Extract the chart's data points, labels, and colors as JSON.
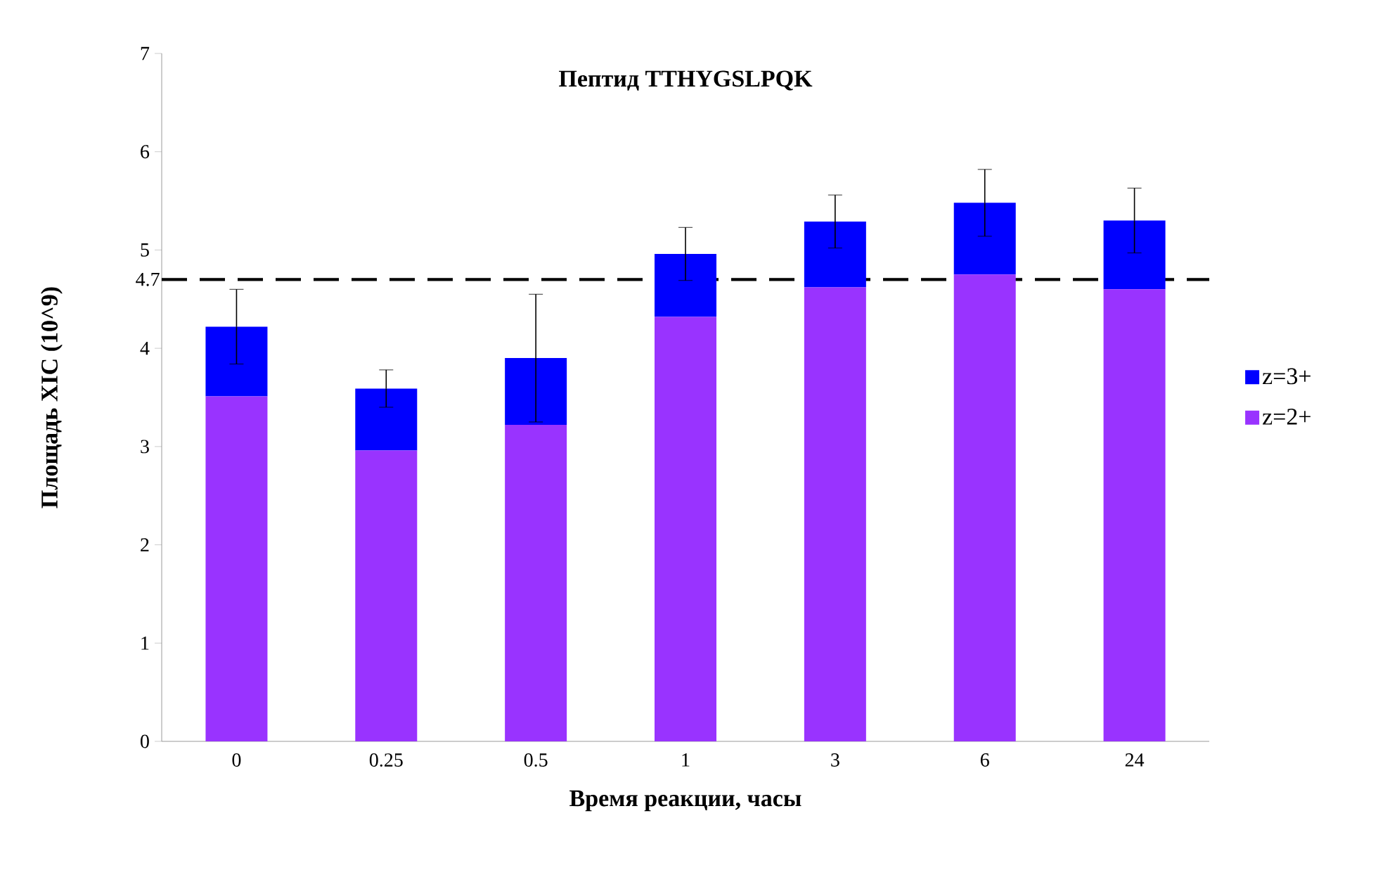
{
  "chart_data": {
    "type": "bar",
    "title": "Пептид TTHYGSLPQK",
    "xlabel": "Время реакции,  часы",
    "ylabel": "Площадь  XIC (10^9)",
    "categories": [
      "0",
      "0.25",
      "0.5",
      "1",
      "3",
      "6",
      "24"
    ],
    "stacked": true,
    "series": [
      {
        "name": "z=2+",
        "color": "#9933ff",
        "values": [
          3.51,
          2.96,
          3.22,
          4.32,
          4.62,
          4.75,
          4.6
        ]
      },
      {
        "name": "z=3+",
        "color": "#0000ff",
        "values": [
          0.71,
          0.63,
          0.68,
          0.64,
          0.67,
          0.73,
          0.7
        ],
        "errors": [
          0.38,
          0.19,
          0.65,
          0.27,
          0.27,
          0.34,
          0.33
        ]
      }
    ],
    "ylim": [
      0,
      7
    ],
    "yticks": [
      0,
      1,
      2,
      3,
      4,
      5,
      6,
      7
    ],
    "ref_lines": [
      {
        "axis": "y",
        "value": 4.7,
        "label": "4.7",
        "color": "#000000",
        "line_style": "dashed"
      }
    ],
    "legend": "right"
  }
}
